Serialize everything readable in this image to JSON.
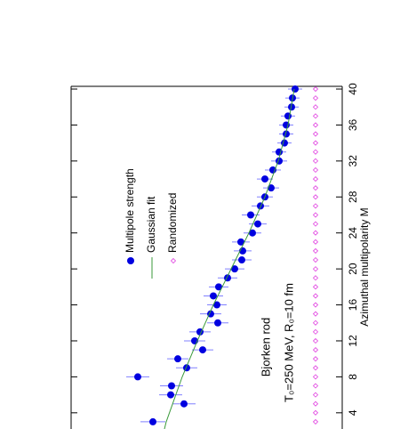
{
  "chart_data": {
    "type": "scatter",
    "x_label": "Azimuthal multipolarity M",
    "annotations": [
      "Bjorken rod",
      "T₀=250 MeV, R₀=10 fm"
    ],
    "xlim": [
      2.2,
      40.3
    ],
    "xticks": [
      4,
      8,
      12,
      16,
      20,
      24,
      28,
      32,
      36,
      40
    ],
    "ylim": [
      0,
      3.05
    ],
    "series": [
      {
        "name": "Multipole strength",
        "color": "#0000e0",
        "marker": "circle",
        "x": [
          3,
          5,
          6,
          7,
          8,
          9,
          10,
          11,
          12,
          13,
          14,
          15,
          16,
          17,
          18,
          19,
          20,
          21,
          22,
          23,
          24,
          25,
          26,
          27,
          28,
          29,
          30,
          31,
          32,
          33,
          34,
          35,
          36,
          37,
          38,
          39,
          40
        ],
        "values": [
          2.13,
          1.78,
          1.93,
          1.92,
          2.3,
          1.75,
          1.85,
          1.57,
          1.66,
          1.6,
          1.4,
          1.48,
          1.41,
          1.45,
          1.39,
          1.29,
          1.21,
          1.13,
          1.12,
          1.14,
          1.01,
          0.95,
          1.03,
          0.92,
          0.87,
          0.8,
          0.87,
          0.78,
          0.71,
          0.71,
          0.65,
          0.63,
          0.63,
          0.61,
          0.57,
          0.56,
          0.53
        ],
        "errors": [
          0.14,
          0.13,
          0.13,
          0.13,
          0.13,
          0.12,
          0.12,
          0.12,
          0.12,
          0.12,
          0.12,
          0.12,
          0.11,
          0.11,
          0.11,
          0.11,
          0.11,
          0.11,
          0.1,
          0.1,
          0.1,
          0.1,
          0.1,
          0.1,
          0.09,
          0.09,
          0.09,
          0.09,
          0.09,
          0.08,
          0.08,
          0.08,
          0.08,
          0.08,
          0.08,
          0.08,
          0.08
        ]
      },
      {
        "name": "Gaussian fit",
        "color": "#3a9a3a",
        "marker": "line",
        "x": [
          2.2,
          3,
          8,
          12,
          16,
          20,
          24,
          28,
          32,
          36,
          40
        ],
        "values": [
          2.0,
          1.98,
          1.8,
          1.63,
          1.45,
          1.25,
          1.05,
          0.87,
          0.72,
          0.61,
          0.54
        ]
      },
      {
        "name": "Randomized",
        "color": "#e040e0",
        "marker": "diamond",
        "x": [
          3,
          4,
          5,
          6,
          7,
          8,
          9,
          10,
          11,
          12,
          13,
          14,
          15,
          16,
          17,
          18,
          19,
          20,
          21,
          22,
          23,
          24,
          25,
          26,
          27,
          28,
          29,
          30,
          31,
          32,
          33,
          34,
          35,
          36,
          37,
          38,
          39,
          40
        ],
        "values": [
          0.3,
          0.3,
          0.3,
          0.3,
          0.3,
          0.3,
          0.3,
          0.3,
          0.3,
          0.3,
          0.3,
          0.3,
          0.3,
          0.3,
          0.3,
          0.3,
          0.3,
          0.3,
          0.3,
          0.3,
          0.3,
          0.3,
          0.3,
          0.3,
          0.3,
          0.3,
          0.3,
          0.3,
          0.3,
          0.3,
          0.3,
          0.3,
          0.3,
          0.3,
          0.3,
          0.3,
          0.3,
          0.3
        ]
      }
    ]
  }
}
